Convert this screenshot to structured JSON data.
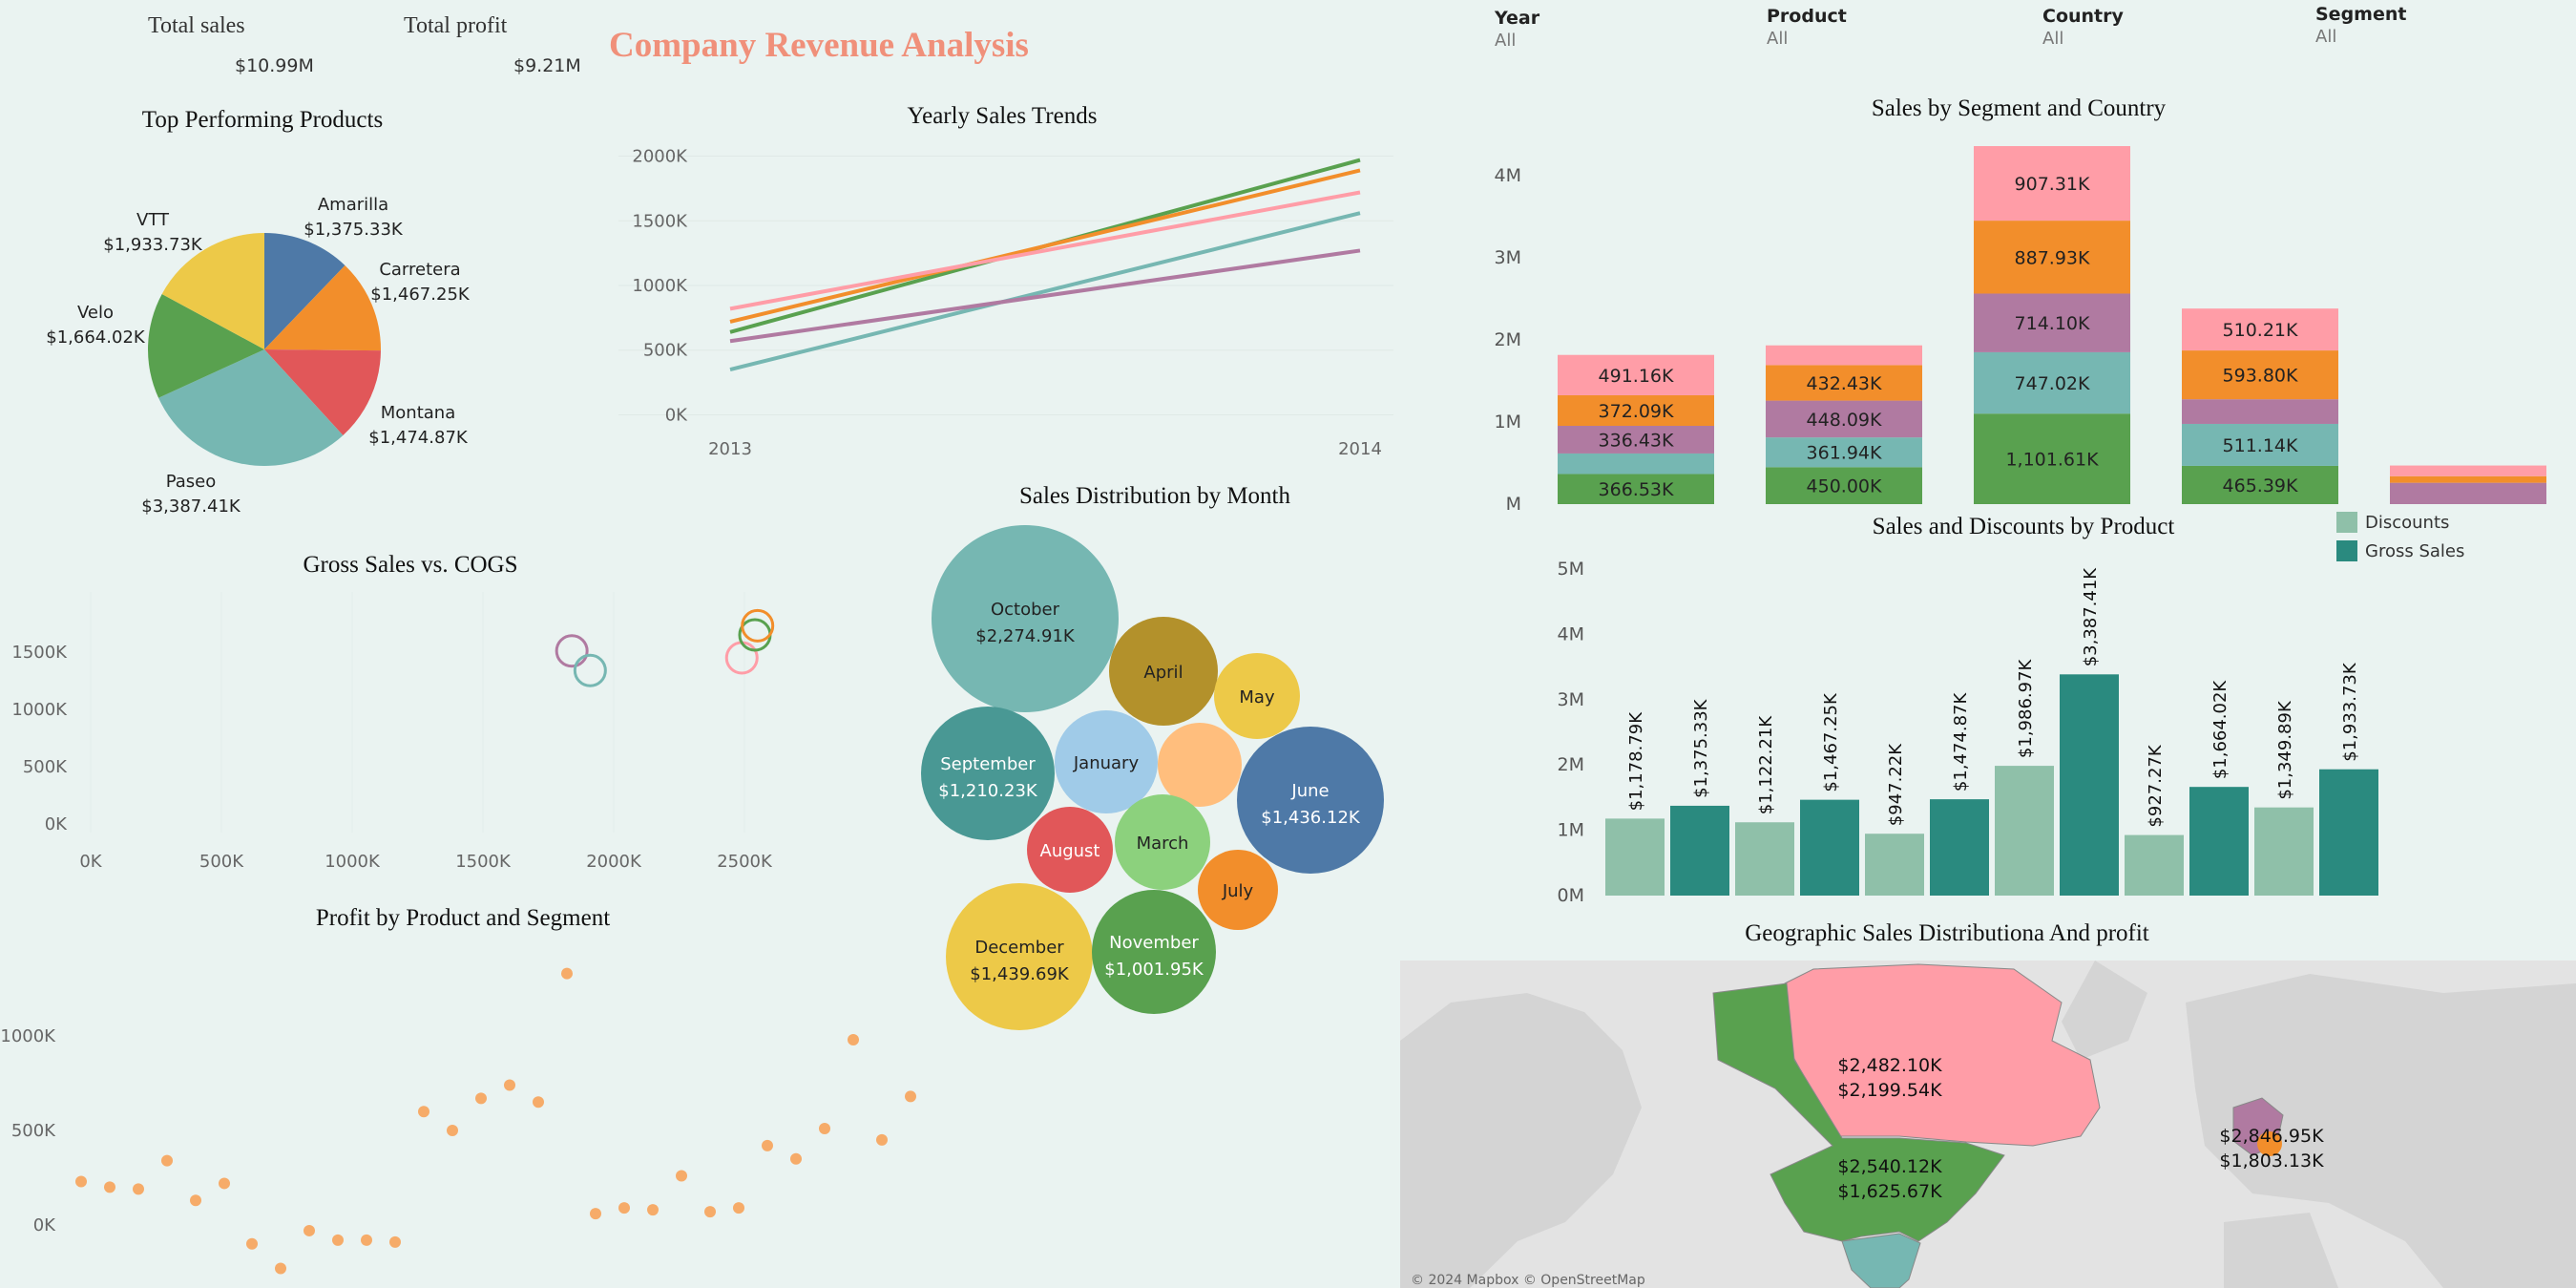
{
  "kpis": {
    "total_sales_label": "Total sales",
    "total_sales_value": "$10.99M",
    "total_profit_label": "Total profit",
    "total_profit_value": "$9.21M"
  },
  "header": {
    "title": "Company Revenue Analysis"
  },
  "filters": [
    {
      "label": "Year",
      "value": "All"
    },
    {
      "label": "Product",
      "value": "All"
    },
    {
      "label": "Country",
      "value": "All"
    },
    {
      "label": "Segment",
      "value": "All"
    }
  ],
  "colors": {
    "green": "#59a14f",
    "teal": "#76b7b2",
    "blue": "#4e79a7",
    "orange": "#f28e2b",
    "red": "#e15759",
    "yellow": "#edc948",
    "pink": "#ff9da7",
    "purple": "#b07aa1",
    "dteal": "#2a8a7f",
    "lteal": "#8fc0a9",
    "brown": "#b3912b",
    "lblue": "#a0cbe8",
    "lorange": "#ffbe7d",
    "lgreen": "#8cd17d",
    "dgteal": "#499894"
  },
  "chart_data": [
    {
      "id": "pie",
      "type": "pie",
      "title": "Top Performing Products",
      "slices": [
        {
          "label": "Amarilla",
          "value_label": "$1,375.33K",
          "value": 1375.33,
          "color": "#4e79a7"
        },
        {
          "label": "Carretera",
          "value_label": "$1,467.25K",
          "value": 1467.25,
          "color": "#f28e2b"
        },
        {
          "label": "Montana",
          "value_label": "$1,474.87K",
          "value": 1474.87,
          "color": "#e15759"
        },
        {
          "label": "Paseo",
          "value_label": "$3,387.41K",
          "value": 3387.41,
          "color": "#76b7b2"
        },
        {
          "label": "Velo",
          "value_label": "$1,664.02K",
          "value": 1664.02,
          "color": "#59a14f"
        },
        {
          "label": "VTT",
          "value_label": "$1,933.73K",
          "value": 1933.73,
          "color": "#edc948"
        }
      ]
    },
    {
      "id": "line",
      "type": "line",
      "title": "Yearly Sales Trends",
      "x": [
        "2013",
        "2014"
      ],
      "yticks": [
        "0K",
        "500K",
        "1000K",
        "1500K",
        "2000K"
      ],
      "ylim": [
        -100,
        2100
      ],
      "series": [
        {
          "color": "#59a14f",
          "values": [
            640,
            1970
          ]
        },
        {
          "color": "#f28e2b",
          "values": [
            720,
            1890
          ]
        },
        {
          "color": "#ff9da7",
          "values": [
            820,
            1720
          ]
        },
        {
          "color": "#76b7b2",
          "values": [
            350,
            1560
          ]
        },
        {
          "color": "#b07aa1",
          "values": [
            570,
            1270
          ]
        }
      ]
    },
    {
      "id": "stacked",
      "type": "bar",
      "title": "Sales by Segment and Country",
      "yticks": [
        "M",
        "1M",
        "2M",
        "3M",
        "4M"
      ],
      "ylim": [
        0,
        4.3
      ],
      "order": [
        "green",
        "teal",
        "purple",
        "orange",
        "pink"
      ],
      "bars": [
        {
          "green": 0.3665,
          "teal": 0.25,
          "purple": 0.3364,
          "orange": 0.3721,
          "pink": 0.4912,
          "labels": {
            "green": "366.53K",
            "purple": "336.43K",
            "orange": "372.09K",
            "pink": "491.16K"
          }
        },
        {
          "green": 0.45,
          "teal": 0.3619,
          "purple": 0.4481,
          "orange": 0.4324,
          "pink": 0.24,
          "labels": {
            "green": "450.00K",
            "teal": "361.94K",
            "purple": "448.09K",
            "orange": "432.43K"
          }
        },
        {
          "green": 1.1016,
          "teal": 0.747,
          "purple": 0.7141,
          "orange": 0.8879,
          "pink": 0.9073,
          "labels": {
            "green": "1,101.61K",
            "teal": "747.02K",
            "purple": "714.10K",
            "orange": "887.93K",
            "pink": "907.31K"
          }
        },
        {
          "green": 0.4654,
          "teal": 0.5111,
          "purple": 0.3,
          "orange": 0.5938,
          "pink": 0.5102,
          "labels": {
            "green": "465.39K",
            "teal": "511.14K",
            "orange": "593.80K",
            "pink": "510.21K"
          }
        },
        {
          "green": 0,
          "teal": 0,
          "purple": 0.26,
          "orange": 0.08,
          "pink": 0.13,
          "labels": {}
        }
      ]
    },
    {
      "id": "discounts",
      "type": "bar",
      "title": "Sales and Discounts by Product",
      "yticks": [
        "0M",
        "1M",
        "2M",
        "3M",
        "4M",
        "5M"
      ],
      "ylim": [
        0,
        5
      ],
      "legend": [
        {
          "label": "Discounts",
          "color": "#8fc0a9"
        },
        {
          "label": "Gross Sales",
          "color": "#2a8a7f"
        }
      ],
      "bars": [
        {
          "value": 1.17879,
          "label": "$1,178.79K",
          "kind": "Discounts"
        },
        {
          "value": 1.37533,
          "label": "$1,375.33K",
          "kind": "Gross Sales"
        },
        {
          "value": 1.12221,
          "label": "$1,122.21K",
          "kind": "Discounts"
        },
        {
          "value": 1.46725,
          "label": "$1,467.25K",
          "kind": "Gross Sales"
        },
        {
          "value": 0.94722,
          "label": "$947.22K",
          "kind": "Discounts"
        },
        {
          "value": 1.47487,
          "label": "$1,474.87K",
          "kind": "Gross Sales"
        },
        {
          "value": 1.98697,
          "label": "$1,986.97K",
          "kind": "Discounts"
        },
        {
          "value": 3.38741,
          "label": "$3,387.41K",
          "kind": "Gross Sales"
        },
        {
          "value": 0.92727,
          "label": "$927.27K",
          "kind": "Discounts"
        },
        {
          "value": 1.66402,
          "label": "$1,664.02K",
          "kind": "Gross Sales"
        },
        {
          "value": 1.34989,
          "label": "$1,349.89K",
          "kind": "Discounts"
        },
        {
          "value": 1.93373,
          "label": "$1,933.73K",
          "kind": "Gross Sales"
        }
      ]
    },
    {
      "id": "scatter",
      "type": "scatter",
      "title": "Gross Sales vs. COGS",
      "xticks": [
        "0K",
        "500K",
        "1000K",
        "1500K",
        "2000K",
        "2500K"
      ],
      "xlim": [
        0,
        2600
      ],
      "yticks": [
        "0K",
        "500K",
        "1000K",
        "1500K"
      ],
      "ylim": [
        -50,
        1800
      ],
      "points": [
        {
          "x": 1840,
          "y": 1510,
          "color": "#b07aa1"
        },
        {
          "x": 1910,
          "y": 1340,
          "color": "#76b7b2"
        },
        {
          "x": 2490,
          "y": 1450,
          "color": "#ff9da7"
        },
        {
          "x": 2540,
          "y": 1650,
          "color": "#59a14f"
        },
        {
          "x": 2550,
          "y": 1730,
          "color": "#f28e2b"
        }
      ]
    },
    {
      "id": "dots",
      "type": "scatter",
      "title": "Profit by Product and Segment",
      "yticks": [
        "0K",
        "500K",
        "1000K"
      ],
      "ylim": [
        -300,
        1380
      ],
      "values": [
        230,
        200,
        190,
        340,
        130,
        220,
        -100,
        -230,
        -30,
        -80,
        -80,
        -90,
        600,
        500,
        670,
        740,
        650,
        1330,
        60,
        90,
        80,
        260,
        70,
        90,
        420,
        350,
        510,
        980,
        450,
        680
      ]
    },
    {
      "id": "bubbles",
      "type": "bubble",
      "title": "Sales Distribution by Month",
      "bubbles": [
        {
          "label": "October",
          "value_label": "$2,274.91K",
          "value": 2274.91,
          "color": "#76b7b2",
          "text": "#222"
        },
        {
          "label": "April",
          "value_label": "",
          "value": 780,
          "color": "#b3912b",
          "text": "#222"
        },
        {
          "label": "May",
          "value_label": "",
          "value": 520,
          "color": "#edc948",
          "text": "#222"
        },
        {
          "label": "September",
          "value_label": "$1,210.23K",
          "value": 1210.23,
          "color": "#499894",
          "text": "#ffffff"
        },
        {
          "label": "January",
          "value_label": "",
          "value": 700,
          "color": "#a0cbe8",
          "text": "#222"
        },
        {
          "label": "",
          "value_label": "",
          "value": 510,
          "color": "#ffbe7d",
          "text": "#222"
        },
        {
          "label": "June",
          "value_label": "$1,436.12K",
          "value": 1436.12,
          "color": "#4e79a7",
          "text": "#ffffff"
        },
        {
          "label": "August",
          "value_label": "",
          "value": 510,
          "color": "#e15759",
          "text": "#ffffff"
        },
        {
          "label": "March",
          "value_label": "",
          "value": 630,
          "color": "#8cd17d",
          "text": "#222"
        },
        {
          "label": "July",
          "value_label": "",
          "value": 440,
          "color": "#f28e2b",
          "text": "#222"
        },
        {
          "label": "December",
          "value_label": "$1,439.69K",
          "value": 1439.69,
          "color": "#edc948",
          "text": "#222"
        },
        {
          "label": "November",
          "value_label": "$1,001.95K",
          "value": 1001.95,
          "color": "#59a14f",
          "text": "#ffffff"
        }
      ]
    },
    {
      "id": "map",
      "type": "map",
      "title": "Geographic Sales Distributiona And profit",
      "regions": [
        {
          "name": "Canada",
          "color": "#ff9da7",
          "sales": "$2,482.10K",
          "profit": "$2,199.54K"
        },
        {
          "name": "United States",
          "color": "#59a14f",
          "sales": "$2,540.12K",
          "profit": "$1,625.67K"
        },
        {
          "name": "Mexico",
          "color": "#76b7b2",
          "sales": "",
          "profit": ""
        },
        {
          "name": "Europe",
          "color": "#b07aa1",
          "sales": "$2,846.95K",
          "profit": "$1,803.13K"
        }
      ],
      "attribution": "© 2024 Mapbox © OpenStreetMap"
    }
  ]
}
